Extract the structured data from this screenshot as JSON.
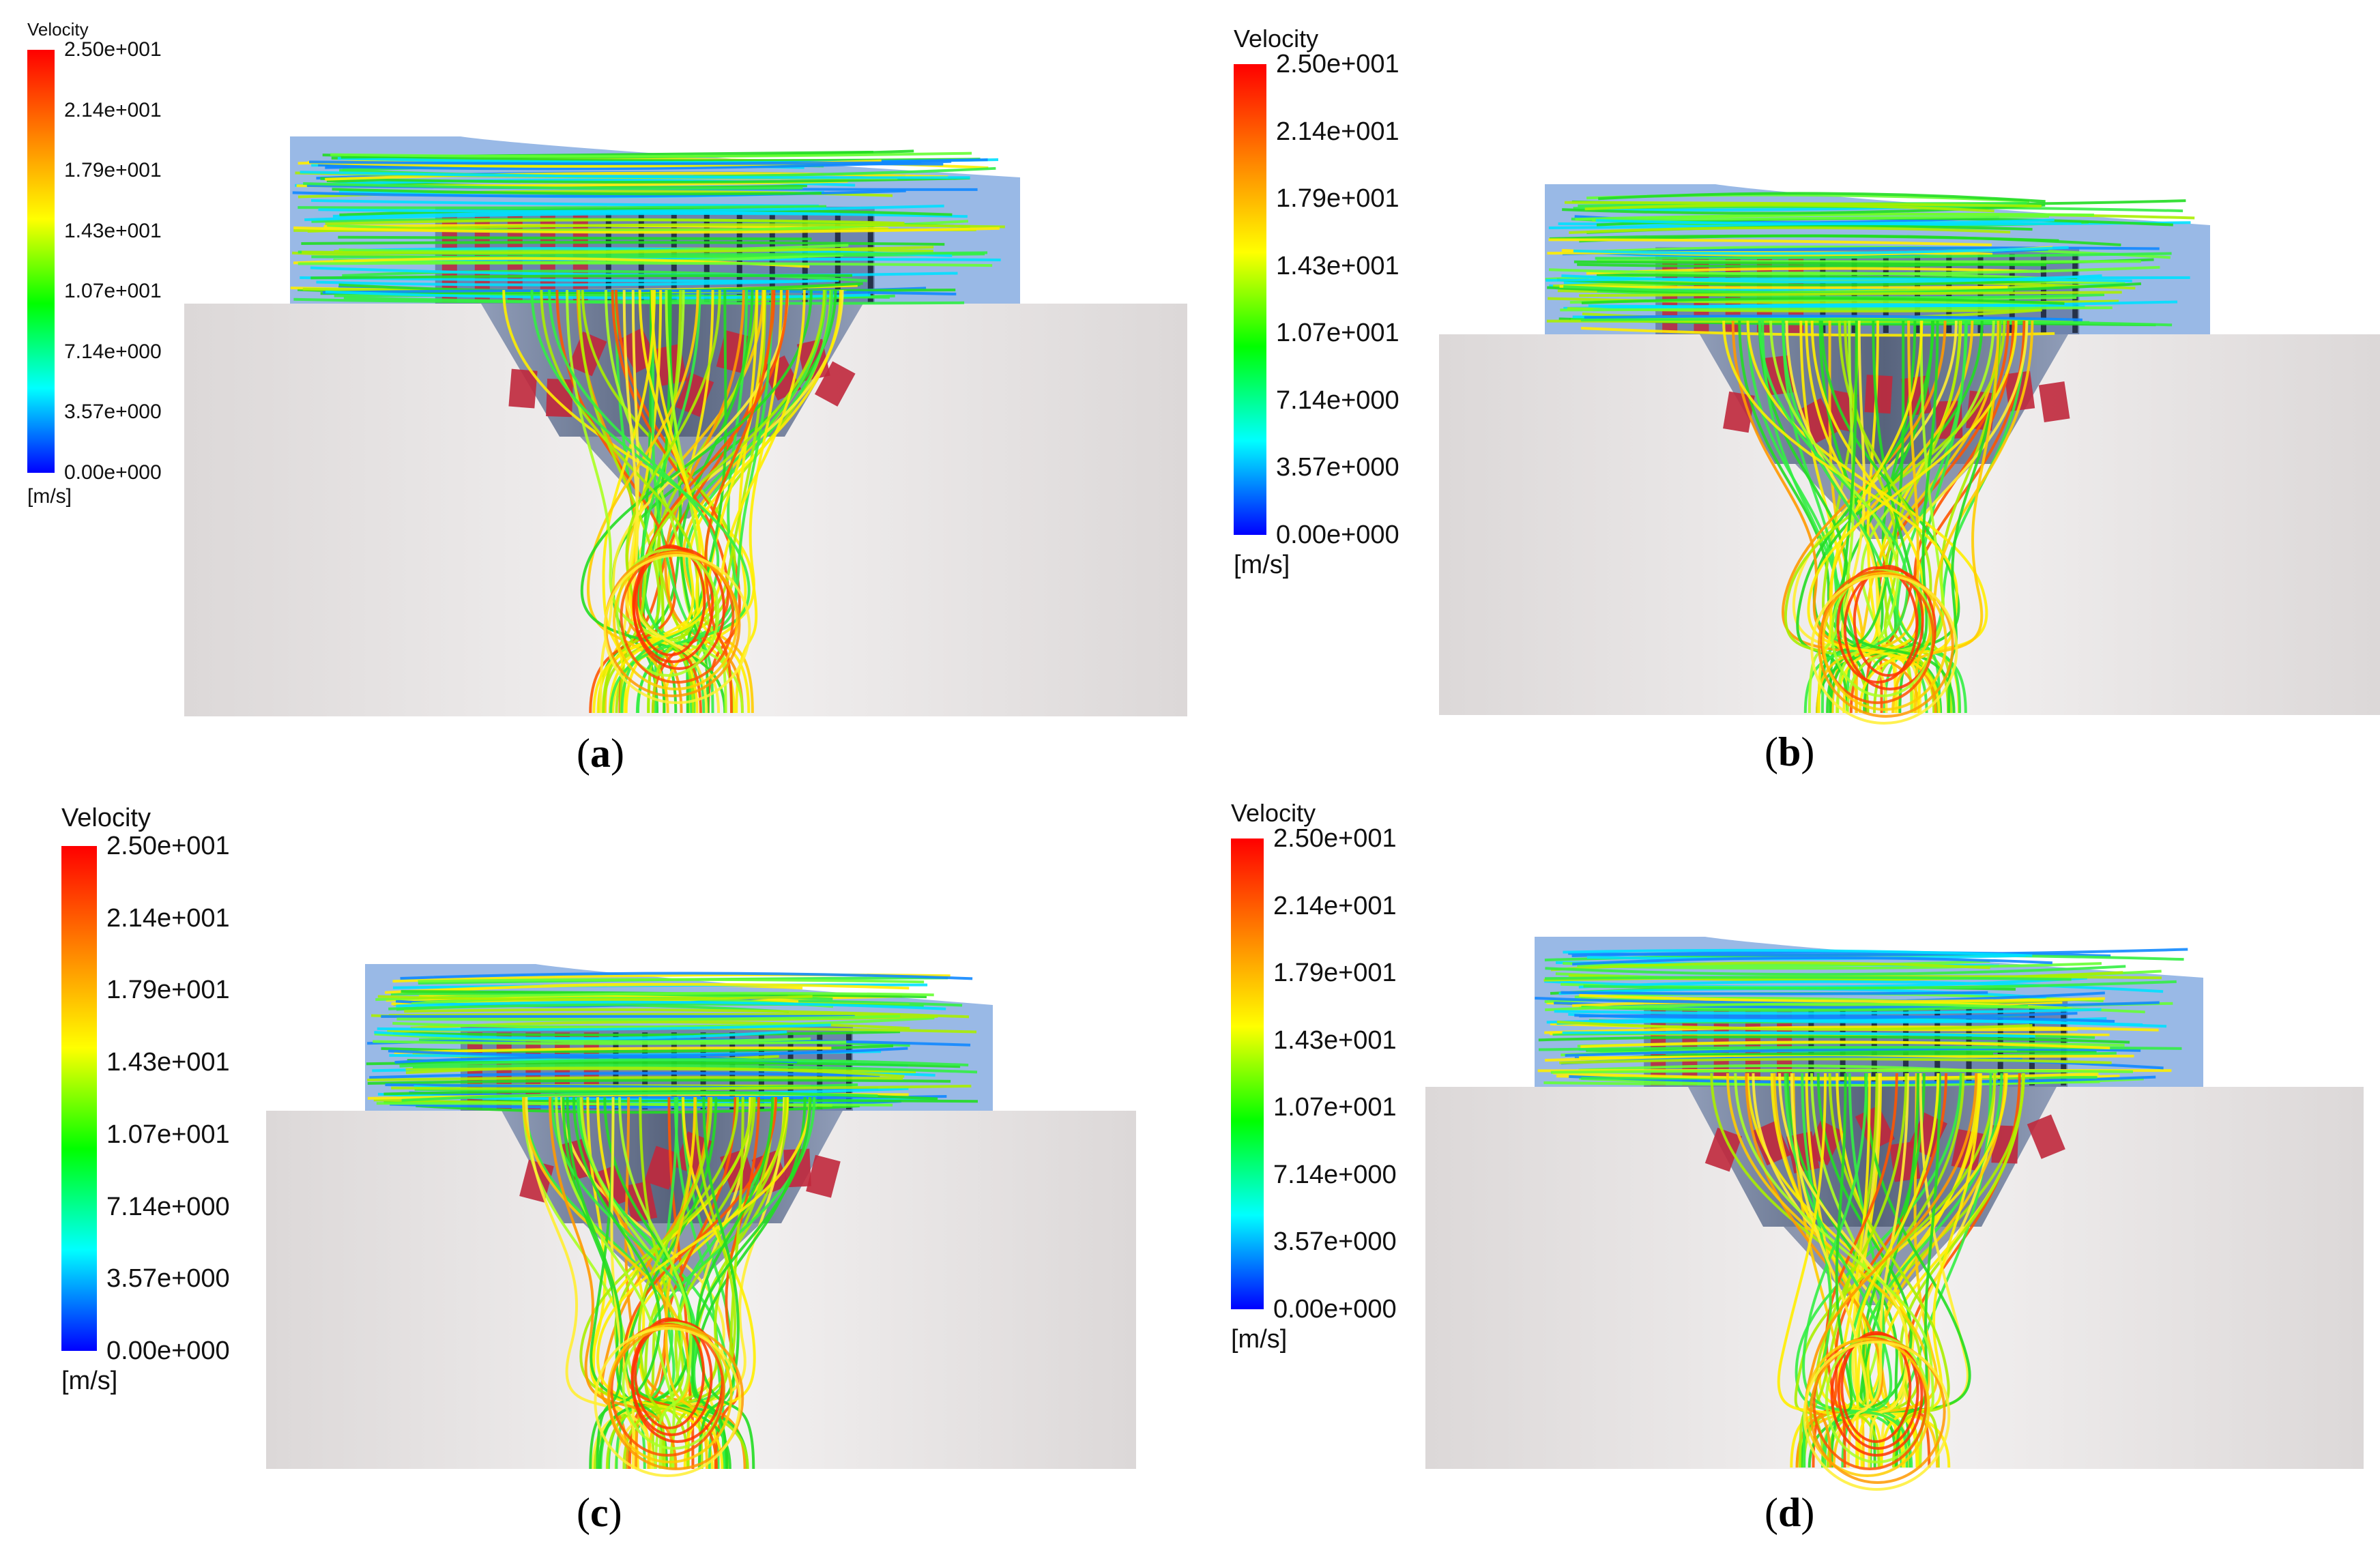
{
  "legend": {
    "title": "Velocity",
    "ticks": [
      "2.50e+001",
      "2.14e+001",
      "1.79e+001",
      "1.43e+001",
      "1.07e+001",
      "7.14e+000",
      "3.57e+000",
      "0.00e+000"
    ],
    "unit": "[m/s]",
    "min_value": 0,
    "max_value": 25,
    "colors": [
      "#ff0000",
      "#ff8000",
      "#ffff00",
      "#00ff00",
      "#00ffff",
      "#0000ff"
    ]
  },
  "panels": [
    {
      "id": "a",
      "letter": "a"
    },
    {
      "id": "b",
      "letter": "b"
    },
    {
      "id": "c",
      "letter": "c"
    },
    {
      "id": "d",
      "letter": "d"
    }
  ],
  "scene": {
    "duct_color": "#7fa7e0",
    "wall_color": "#e6e2e2",
    "cone_color": "#5a6a8a",
    "blade_color": "#c0283c"
  }
}
